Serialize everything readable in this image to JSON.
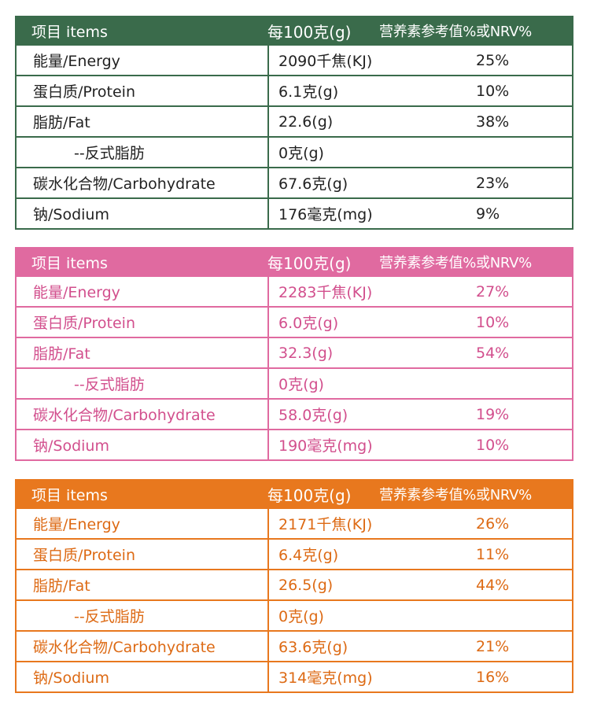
{
  "colors": {
    "green": "#3a6b4b",
    "pink": "#e06aa0",
    "orange": "#e8781e"
  },
  "tables": [
    {
      "header": {
        "item": "项目 items",
        "per100": "每100克(g)",
        "nrv": "营养素参考值%或NRV%"
      },
      "rows": [
        {
          "item": "能量/Energy",
          "value": "2090千焦(KJ)",
          "nrv": "25%"
        },
        {
          "item": "蛋白质/Protein",
          "value": "6.1克(g)",
          "nrv": "10%"
        },
        {
          "item": "脂肪/Fat",
          "value": "22.6(g)",
          "nrv": "38%"
        },
        {
          "item": "--反式脂肪",
          "value": "0克(g)",
          "nrv": ""
        },
        {
          "item": "碳水化合物/Carbohydrate",
          "value": "67.6克(g)",
          "nrv": "23%"
        },
        {
          "item": "钠/Sodium",
          "value": "176毫克(mg)",
          "nrv": "9%"
        }
      ]
    },
    {
      "header": {
        "item": "项目 items",
        "per100": "每100克(g)",
        "nrv": "营养素参考值%或NRV%"
      },
      "rows": [
        {
          "item": "能量/Energy",
          "value": "2283千焦(KJ)",
          "nrv": "27%"
        },
        {
          "item": "蛋白质/Protein",
          "value": "6.0克(g)",
          "nrv": "10%"
        },
        {
          "item": "脂肪/Fat",
          "value": "32.3(g)",
          "nrv": "54%"
        },
        {
          "item": "--反式脂肪",
          "value": "0克(g)",
          "nrv": ""
        },
        {
          "item": "碳水化合物/Carbohydrate",
          "value": "58.0克(g)",
          "nrv": "19%"
        },
        {
          "item": "钠/Sodium",
          "value": "190毫克(mg)",
          "nrv": "10%"
        }
      ]
    },
    {
      "header": {
        "item": "项目 items",
        "per100": "每100克(g)",
        "nrv": "营养素参考值%或NRV%"
      },
      "rows": [
        {
          "item": "能量/Energy",
          "value": "2171千焦(KJ)",
          "nrv": "26%"
        },
        {
          "item": "蛋白质/Protein",
          "value": "6.4克(g)",
          "nrv": "11%"
        },
        {
          "item": "脂肪/Fat",
          "value": "26.5(g)",
          "nrv": "44%"
        },
        {
          "item": "--反式脂肪",
          "value": "0克(g)",
          "nrv": ""
        },
        {
          "item": "碳水化合物/Carbohydrate",
          "value": "63.6克(g)",
          "nrv": "21%"
        },
        {
          "item": "钠/Sodium",
          "value": "314毫克(mg)",
          "nrv": "16%"
        }
      ]
    }
  ]
}
